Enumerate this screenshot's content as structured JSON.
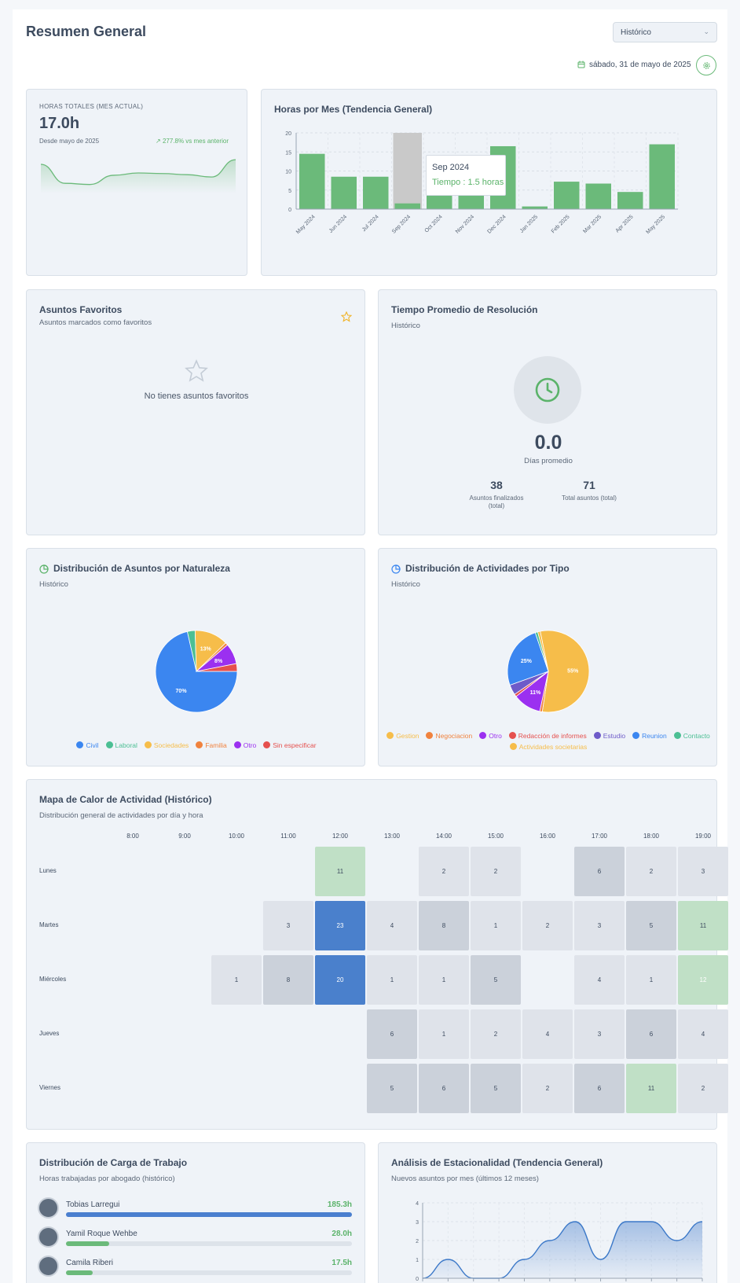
{
  "header": {
    "title": "Resumen General",
    "period_select": "Histórico",
    "date": "sábado, 31 de mayo de 2025"
  },
  "total_hours": {
    "label": "HORAS TOTALES (MES ACTUAL)",
    "value": "17.0h",
    "since": "Desde mayo de 2025",
    "change": "277.8% vs mes anterior"
  },
  "monthly_hours": {
    "title": "Horas por Mes (Tendencia General)",
    "tooltip_title": "Sep 2024",
    "tooltip_value": "Tiempo : 1.5 horas"
  },
  "favorites": {
    "title": "Asuntos Favoritos",
    "subtitle": "Asuntos marcados como favoritos",
    "empty": "No tienes asuntos favoritos"
  },
  "resolution": {
    "title": "Tiempo Promedio de Resolución",
    "subtitle": "Histórico",
    "value": "0.0",
    "value_label": "Días promedio",
    "finalized": "38",
    "finalized_label_1": "Asuntos finalizados",
    "finalized_label_2": "(total)",
    "total": "71",
    "total_label": "Total asuntos (total)"
  },
  "nature": {
    "title": "Distribución de Asuntos por Naturaleza",
    "subtitle": "Histórico",
    "legend": [
      "Civil",
      "Laboral",
      "Sociedades",
      "Familia",
      "Otro",
      "Sin especificar"
    ]
  },
  "activities": {
    "title": "Distribución de Actividades por Tipo",
    "subtitle": "Histórico",
    "legend": [
      "Gestion",
      "Negociacion",
      "Otro",
      "Redacción de informes",
      "Estudio",
      "Reunion",
      "Contacto",
      "Actividades societarias"
    ]
  },
  "heatmap": {
    "title": "Mapa de Calor de Actividad (Histórico)",
    "subtitle": "Distribución general de actividades por día y hora",
    "hours": [
      "8:00",
      "9:00",
      "10:00",
      "11:00",
      "12:00",
      "13:00",
      "14:00",
      "15:00",
      "16:00",
      "17:00",
      "18:00",
      "19:00"
    ],
    "days": [
      "Lunes",
      "Martes",
      "Miércoles",
      "Jueves",
      "Viernes"
    ],
    "values": [
      [
        null,
        null,
        null,
        null,
        11,
        null,
        2,
        2,
        null,
        6,
        2,
        3
      ],
      [
        null,
        null,
        null,
        3,
        23,
        4,
        8,
        1,
        2,
        3,
        5,
        11
      ],
      [
        null,
        null,
        1,
        8,
        20,
        1,
        1,
        5,
        null,
        4,
        1,
        12
      ],
      [
        null,
        null,
        null,
        null,
        null,
        6,
        1,
        2,
        4,
        3,
        6,
        4
      ],
      [
        null,
        null,
        null,
        null,
        null,
        5,
        6,
        5,
        2,
        6,
        11,
        2
      ]
    ]
  },
  "workload": {
    "title": "Distribución de Carga de Trabajo",
    "subtitle": "Horas trabajadas por abogado (histórico)",
    "rows": [
      {
        "name": "Tobias Larregui",
        "hours": "185.3h",
        "fraction": 1.0
      },
      {
        "name": "Yamil Roque Wehbe",
        "hours": "28.0h",
        "fraction": 0.151
      },
      {
        "name": "Camila Riberi",
        "hours": "17.5h",
        "fraction": 0.094
      }
    ]
  },
  "seasonality": {
    "title": "Análisis de Estacionalidad (Tendencia General)",
    "subtitle": "Nuevos asuntos por mes (últimos 12 meses)"
  },
  "colors": {
    "green": "#6bba7a",
    "blue": "#3b86f0",
    "yellow": "#f6bd4a",
    "orange": "#f0823e",
    "purple": "#9b30f0",
    "red": "#e5504e",
    "teal": "#4cbf94",
    "indigo": "#6e5bc9"
  },
  "chart_data": [
    {
      "type": "bar",
      "title": "Horas por Mes (Tendencia General)",
      "categories": [
        "May 2024",
        "Jun 2024",
        "Jul 2024",
        "Sep 2024",
        "Oct 2024",
        "Nov 2024",
        "Dec 2024",
        "Jan 2025",
        "Feb 2025",
        "Mar 2025",
        "Apr 2025",
        "May 2025"
      ],
      "values": [
        14.5,
        8.5,
        8.5,
        1.5,
        4.5,
        4.0,
        16.5,
        0.7,
        7.2,
        6.7,
        4.5,
        17.0
      ],
      "yticks": [
        0,
        5,
        10,
        15,
        20
      ],
      "ylim": [
        0,
        20
      ]
    },
    {
      "type": "line",
      "title": "HORAS TOTALES (MES ACTUAL)",
      "values": [
        7.5,
        4.2,
        4.0,
        5.6,
        6.0,
        5.9,
        5.7,
        5.3,
        8.3
      ]
    },
    {
      "type": "pie",
      "title": "Distribución de Asuntos por Naturaleza",
      "labels": [
        "Civil",
        "Laboral",
        "Sociedades",
        "Familia",
        "Otro",
        "Sin especificar"
      ],
      "values": [
        70,
        3,
        13,
        1,
        8,
        3
      ],
      "data_labels": [
        "70%",
        "",
        "13%",
        "",
        "8%",
        ""
      ]
    },
    {
      "type": "pie",
      "title": "Distribución de Actividades por Tipo",
      "labels": [
        "Gestion",
        "Negociacion",
        "Otro",
        "Redacción de informes",
        "Estudio",
        "Reunion",
        "Contacto",
        "Actividades societarias"
      ],
      "values": [
        55,
        1,
        11,
        1,
        4,
        25,
        1,
        1
      ],
      "data_labels": [
        "55%",
        "",
        "11%",
        "",
        "",
        "25%",
        "",
        ""
      ]
    },
    {
      "type": "area",
      "title": "Análisis de Estacionalidad (Tendencia General)",
      "values": [
        0,
        1,
        0,
        0,
        1,
        2,
        3,
        1,
        3,
        3,
        2,
        3
      ],
      "yticks": [
        0,
        1,
        2,
        3,
        4
      ],
      "ylim": [
        0,
        4
      ]
    }
  ]
}
